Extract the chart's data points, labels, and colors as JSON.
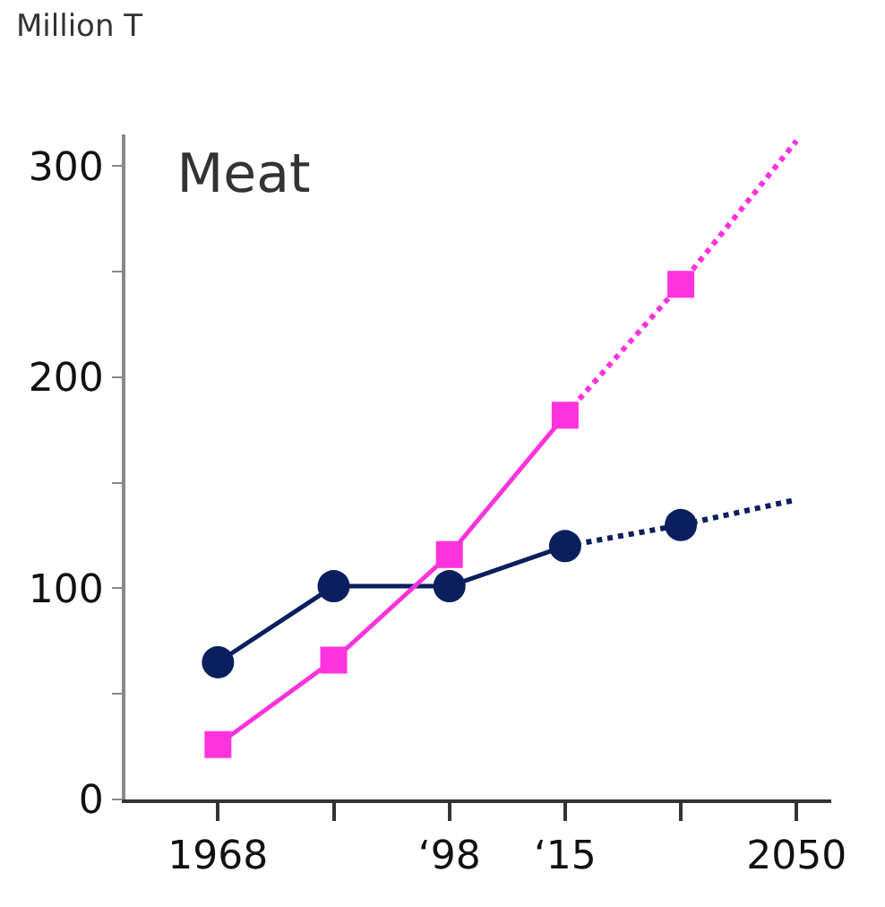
{
  "chart_data": {
    "type": "line",
    "title": "Meat",
    "ylabel": "Million T",
    "categories": [
      "1968",
      null,
      "‘98",
      "‘15",
      null,
      "2050"
    ],
    "series": [
      {
        "color": "#0b1f5e",
        "values": [
          65,
          101,
          101,
          120,
          null,
          null
        ],
        "marker": "circle",
        "line_style": "solid"
      },
      {
        "color": "#0b1f5e",
        "values": [
          null,
          null,
          null,
          120,
          130,
          142
        ],
        "marker": "none",
        "line_style": "dotted"
      },
      {
        "type": "scatter",
        "color": "#0b1f5e",
        "values": [
          null,
          null,
          null,
          null,
          130,
          null
        ],
        "marker": "circle"
      },
      {
        "color": "#ff33dd",
        "values": [
          26,
          66,
          116,
          182,
          null,
          null
        ],
        "marker": "square",
        "line_style": "solid"
      },
      {
        "color": "#ff33dd",
        "values": [
          null,
          null,
          null,
          182,
          244,
          312
        ],
        "marker": "none",
        "line_style": "dotted"
      },
      {
        "type": "scatter",
        "color": "#ff33dd",
        "values": [
          null,
          null,
          null,
          null,
          244,
          null
        ],
        "marker": "square"
      }
    ],
    "ylim": [
      0,
      315
    ],
    "yticks": [
      0,
      {
        "value": 50,
        "label": null
      },
      100,
      {
        "value": 150,
        "label": null
      },
      200,
      {
        "value": 250,
        "label": null
      },
      300
    ]
  }
}
